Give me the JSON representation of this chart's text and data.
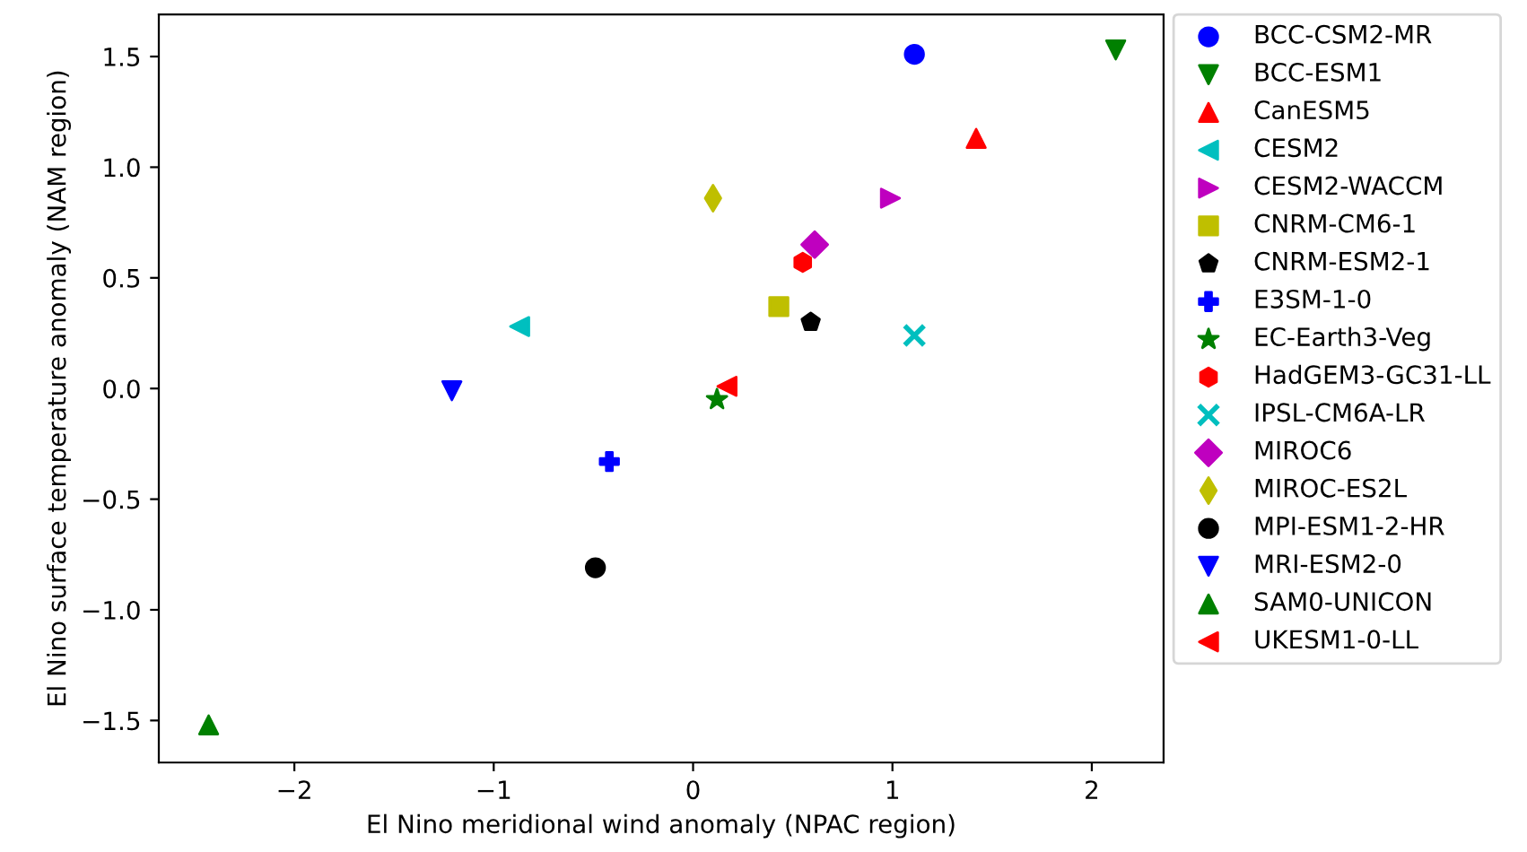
{
  "chart_data": {
    "type": "scatter",
    "xlabel": "El Nino meridional wind anomaly (NPAC region)",
    "ylabel": "El Nino surface temperature anomaly (NAM region)",
    "xlim": [
      -2.68,
      2.36
    ],
    "ylim": [
      -1.69,
      1.69
    ],
    "xticks": [
      {
        "value": -2,
        "label": "−2"
      },
      {
        "value": -1,
        "label": "−1"
      },
      0,
      1,
      2
    ],
    "yticks": [
      {
        "value": -1.5,
        "label": "−1.5"
      },
      {
        "value": -1.0,
        "label": "−1.0"
      },
      {
        "value": -0.5,
        "label": "−0.5"
      },
      {
        "value": 0.0,
        "label": "0.0"
      },
      {
        "value": 0.5,
        "label": "0.5"
      },
      {
        "value": 1.0,
        "label": "1.0"
      },
      {
        "value": 1.5,
        "label": "1.5"
      }
    ],
    "grid": false,
    "legend": "right",
    "series": [
      {
        "name": "BCC-CSM2-MR",
        "color": "#0000ff",
        "x": [
          1.11
        ],
        "values": [
          1.51
        ]
      },
      {
        "name": "BCC-ESM1",
        "color": "#008000",
        "x": [
          2.12
        ],
        "values": [
          1.53
        ]
      },
      {
        "name": "CanESM5",
        "color": "#ff0000",
        "x": [
          1.42
        ],
        "values": [
          1.13
        ]
      },
      {
        "name": "CESM2",
        "color": "#00bfbf",
        "x": [
          -0.87
        ],
        "values": [
          0.28
        ]
      },
      {
        "name": "CESM2-WACCM",
        "color": "#bf00bf",
        "x": [
          0.99
        ],
        "values": [
          0.86
        ]
      },
      {
        "name": "CNRM-CM6-1",
        "color": "#bfbf00",
        "x": [
          0.43
        ],
        "values": [
          0.37
        ]
      },
      {
        "name": "CNRM-ESM2-1",
        "color": "#000000",
        "x": [
          0.59
        ],
        "values": [
          0.3
        ]
      },
      {
        "name": "E3SM-1-0",
        "color": "#0000ff",
        "x": [
          -0.42
        ],
        "values": [
          -0.33
        ]
      },
      {
        "name": "EC-Earth3-Veg",
        "color": "#008000",
        "x": [
          0.12
        ],
        "values": [
          -0.05
        ]
      },
      {
        "name": "HadGEM3-GC31-LL",
        "color": "#ff0000",
        "x": [
          0.55
        ],
        "values": [
          0.57
        ]
      },
      {
        "name": "IPSL-CM6A-LR",
        "color": "#00bfbf",
        "x": [
          1.11
        ],
        "values": [
          0.24
        ]
      },
      {
        "name": "MIROC6",
        "color": "#bf00bf",
        "x": [
          0.61
        ],
        "values": [
          0.65
        ]
      },
      {
        "name": "MIROC-ES2L",
        "color": "#bfbf00",
        "x": [
          0.1
        ],
        "values": [
          0.86
        ]
      },
      {
        "name": "MPI-ESM1-2-HR",
        "color": "#000000",
        "x": [
          -0.49
        ],
        "values": [
          -0.81
        ]
      },
      {
        "name": "MRI-ESM2-0",
        "color": "#0000ff",
        "x": [
          -1.21
        ],
        "values": [
          -0.01
        ]
      },
      {
        "name": "SAM0-UNICON",
        "color": "#008000",
        "x": [
          -2.43
        ],
        "values": [
          -1.52
        ]
      },
      {
        "name": "UKESM1-0-LL",
        "color": "#ff0000",
        "x": [
          0.17
        ],
        "values": [
          0.01
        ]
      }
    ]
  }
}
